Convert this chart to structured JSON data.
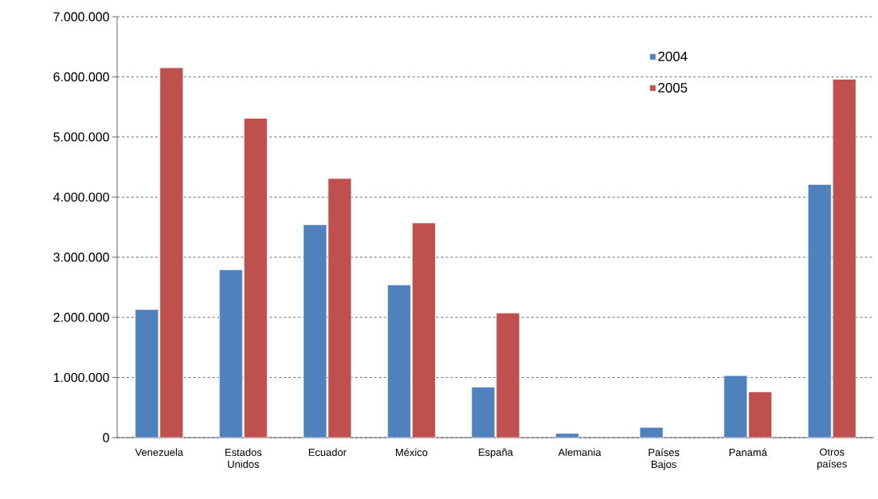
{
  "chart_data": {
    "type": "bar",
    "categories": [
      "Venezuela",
      "Estados Unidos",
      "Ecuador",
      "México",
      "España",
      "Alemania",
      "Países Bajos",
      "Panamá",
      "Otros países"
    ],
    "series": [
      {
        "name": "2004",
        "color": "#4f81bd",
        "values": [
          2130000,
          2790000,
          3540000,
          2540000,
          840000,
          70000,
          170000,
          1030000,
          4210000
        ]
      },
      {
        "name": "2005",
        "color": "#c0504d",
        "values": [
          6150000,
          5310000,
          4310000,
          3570000,
          2070000,
          null,
          null,
          760000,
          5960000
        ]
      }
    ],
    "ylim": [
      0,
      7000000
    ],
    "yticks": [
      0,
      {
        "value": 1000000,
        "label": "1.000.000"
      },
      {
        "value": 2000000,
        "label": "2.000.000"
      },
      {
        "value": 3000000,
        "label": "3.000.000"
      },
      {
        "value": 4000000,
        "label": "4.000.000"
      },
      {
        "value": 5000000,
        "label": "5.000.000"
      },
      {
        "value": 6000000,
        "label": "6.000.000"
      },
      {
        "value": 7000000,
        "label": "7.000.000"
      }
    ],
    "grid": "y",
    "legend": "top right"
  }
}
